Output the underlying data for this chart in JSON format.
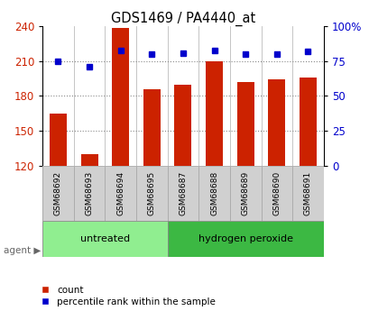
{
  "title": "GDS1469 / PA4440_at",
  "samples": [
    "GSM68692",
    "GSM68693",
    "GSM68694",
    "GSM68695",
    "GSM68687",
    "GSM68688",
    "GSM68689",
    "GSM68690",
    "GSM68691"
  ],
  "counts": [
    165,
    130,
    239,
    186,
    190,
    210,
    192,
    194,
    196
  ],
  "percentile_ranks": [
    75,
    71,
    83,
    80,
    81,
    83,
    80,
    80,
    82
  ],
  "groups": [
    {
      "label": "untreated",
      "indices": [
        0,
        1,
        2,
        3
      ],
      "color": "#90ee90"
    },
    {
      "label": "hydrogen peroxide",
      "indices": [
        4,
        5,
        6,
        7,
        8
      ],
      "color": "#3cb843"
    }
  ],
  "bar_color": "#cc2200",
  "dot_color": "#0000cc",
  "ylim_left": [
    120,
    240
  ],
  "ylim_right": [
    0,
    100
  ],
  "yticks_left": [
    120,
    150,
    180,
    210,
    240
  ],
  "yticks_right": [
    0,
    25,
    50,
    75,
    100
  ],
  "ytick_labels_right": [
    "0",
    "25",
    "50",
    "75",
    "100%"
  ],
  "grid_values": [
    150,
    180,
    210
  ],
  "background_color": "#ffffff",
  "plot_bg_color": "#ffffff",
  "sample_box_color": "#d0d0d0",
  "legend_count_label": "count",
  "legend_pct_label": "percentile rank within the sample"
}
